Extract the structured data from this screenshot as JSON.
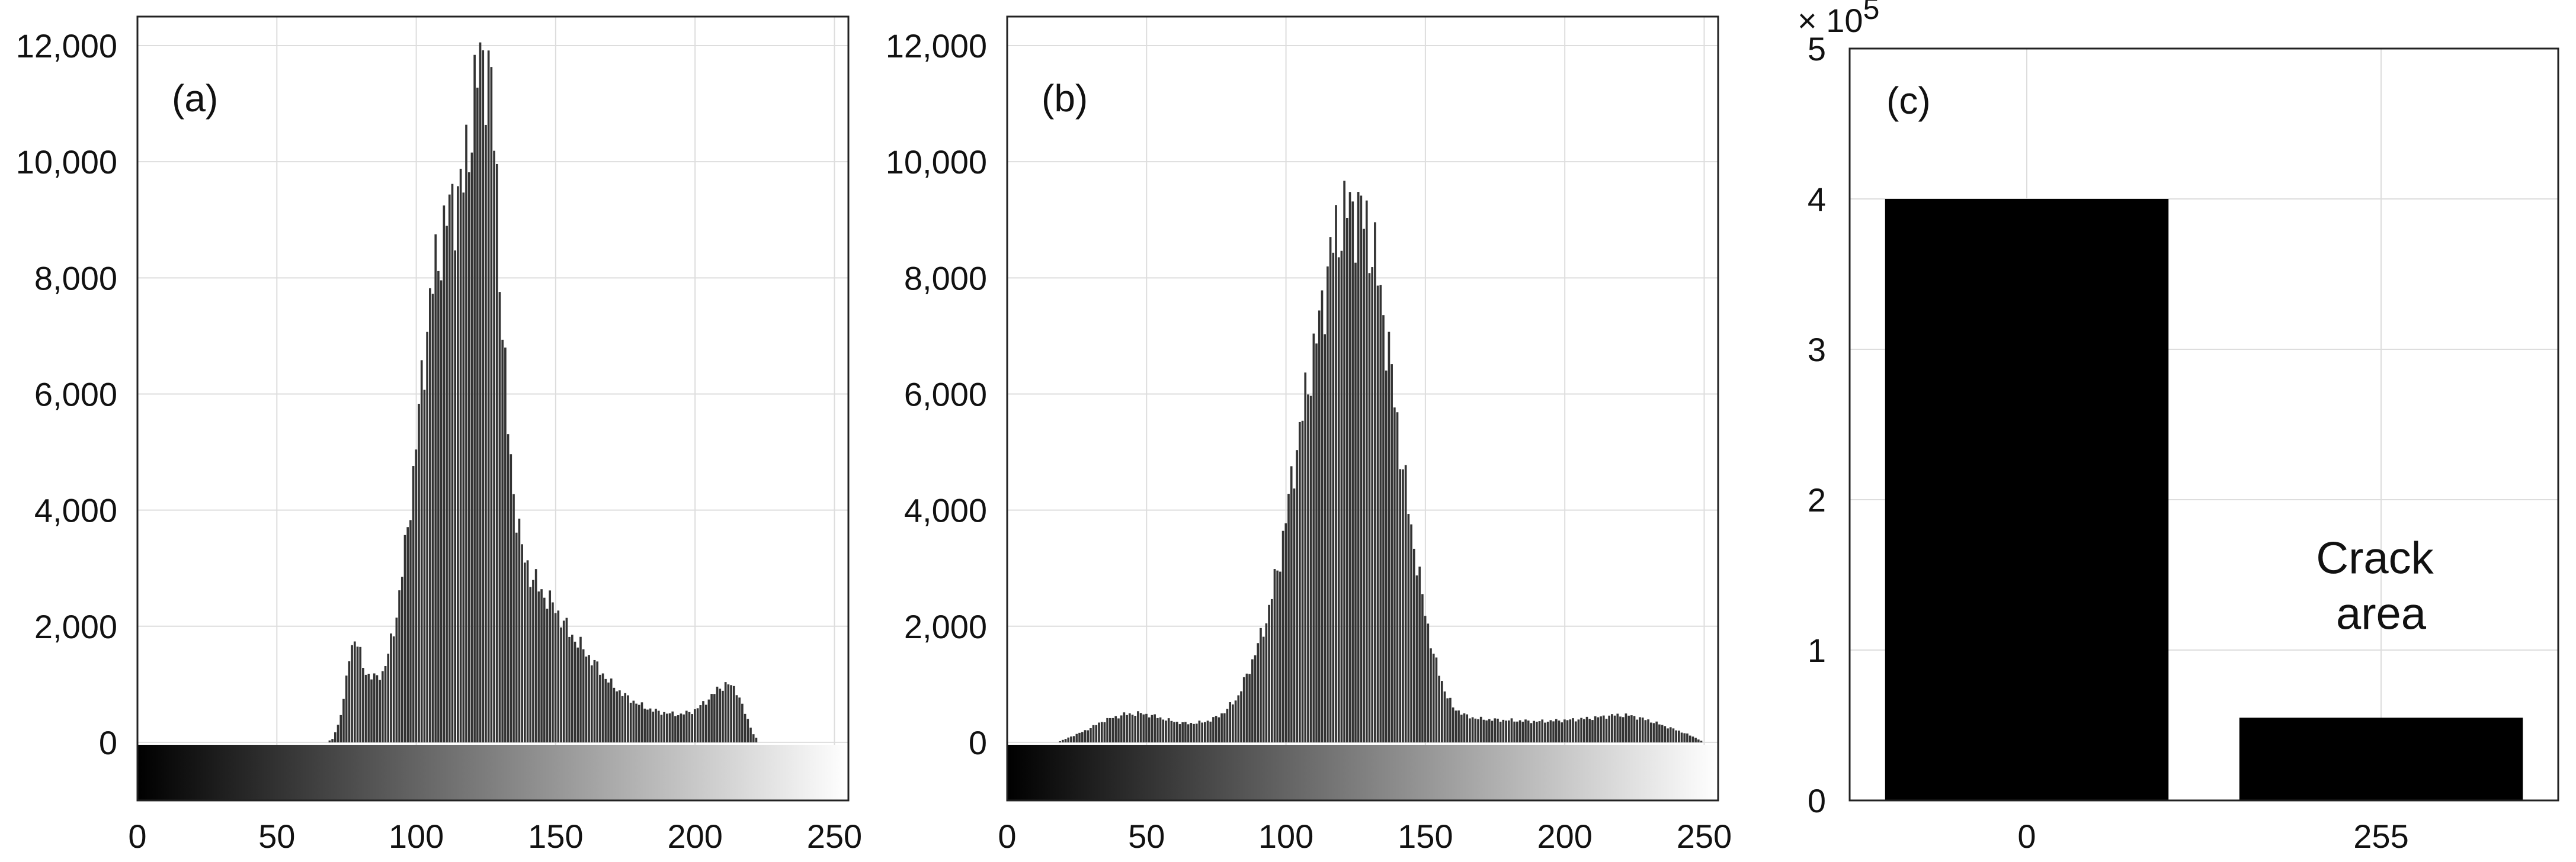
{
  "chart_data": [
    {
      "type": "bar",
      "panel_label": "(a)",
      "title": "",
      "xlabel": "",
      "ylabel": "",
      "xlim": [
        0,
        255
      ],
      "ylim": [
        -1000,
        12500
      ],
      "xticks": [
        0,
        50,
        100,
        150,
        200,
        250
      ],
      "xtick_labels": [
        "0",
        "50",
        "100",
        "150",
        "200",
        "250"
      ],
      "yticks": [
        0,
        2000,
        4000,
        6000,
        8000,
        10000,
        12000
      ],
      "ytick_labels": [
        "0",
        "2,000",
        "4,000",
        "6,000",
        "8,000",
        "10,000",
        "12,000"
      ],
      "grid": true,
      "colorbar": "gray gradient from 0 (black) to 255 (white)",
      "bar_color": "#333333",
      "profile": [
        [
          0,
          0
        ],
        [
          68,
          0
        ],
        [
          70,
          60
        ],
        [
          72,
          300
        ],
        [
          74,
          700
        ],
        [
          76,
          1500
        ],
        [
          78,
          1800
        ],
        [
          80,
          1500
        ],
        [
          82,
          1200
        ],
        [
          85,
          1100
        ],
        [
          88,
          1200
        ],
        [
          90,
          1500
        ],
        [
          93,
          2200
        ],
        [
          96,
          3300
        ],
        [
          99,
          4600
        ],
        [
          102,
          6200
        ],
        [
          105,
          7600
        ],
        [
          108,
          8400
        ],
        [
          111,
          9000
        ],
        [
          114,
          9400
        ],
        [
          117,
          9600
        ],
        [
          120,
          10800
        ],
        [
          123,
          11700
        ],
        [
          125,
          11800
        ],
        [
          127,
          11200
        ],
        [
          129,
          9500
        ],
        [
          131,
          7200
        ],
        [
          133,
          5400
        ],
        [
          135,
          4300
        ],
        [
          138,
          3300
        ],
        [
          141,
          2900
        ],
        [
          145,
          2600
        ],
        [
          150,
          2300
        ],
        [
          155,
          1900
        ],
        [
          160,
          1600
        ],
        [
          165,
          1300
        ],
        [
          170,
          1000
        ],
        [
          175,
          800
        ],
        [
          180,
          650
        ],
        [
          185,
          550
        ],
        [
          190,
          500
        ],
        [
          195,
          480
        ],
        [
          200,
          550
        ],
        [
          205,
          750
        ],
        [
          209,
          950
        ],
        [
          212,
          1000
        ],
        [
          215,
          900
        ],
        [
          218,
          500
        ],
        [
          221,
          150
        ],
        [
          223,
          0
        ],
        [
          255,
          0
        ]
      ]
    },
    {
      "type": "bar",
      "panel_label": "(b)",
      "title": "",
      "xlabel": "",
      "ylabel": "",
      "xlim": [
        0,
        255
      ],
      "ylim": [
        -1000,
        12500
      ],
      "xticks": [
        0,
        50,
        100,
        150,
        200,
        250
      ],
      "xtick_labels": [
        "0",
        "50",
        "100",
        "150",
        "200",
        "250"
      ],
      "yticks": [
        0,
        2000,
        4000,
        6000,
        8000,
        10000,
        12000
      ],
      "ytick_labels": [
        "0",
        "2,000",
        "4,000",
        "6,000",
        "8,000",
        "10,000",
        "12,000"
      ],
      "grid": true,
      "colorbar": "gray gradient from 0 (black) to 255 (white)",
      "bar_color": "#333333",
      "profile": [
        [
          0,
          0
        ],
        [
          18,
          0
        ],
        [
          22,
          80
        ],
        [
          28,
          200
        ],
        [
          35,
          380
        ],
        [
          42,
          480
        ],
        [
          48,
          500
        ],
        [
          53,
          450
        ],
        [
          58,
          380
        ],
        [
          63,
          330
        ],
        [
          68,
          330
        ],
        [
          73,
          380
        ],
        [
          78,
          520
        ],
        [
          83,
          800
        ],
        [
          88,
          1400
        ],
        [
          93,
          2100
        ],
        [
          98,
          3200
        ],
        [
          103,
          4800
        ],
        [
          108,
          6200
        ],
        [
          112,
          7200
        ],
        [
          116,
          8400
        ],
        [
          120,
          9000
        ],
        [
          123,
          9200
        ],
        [
          126,
          9150
        ],
        [
          129,
          8900
        ],
        [
          132,
          8300
        ],
        [
          135,
          7400
        ],
        [
          138,
          6300
        ],
        [
          141,
          5100
        ],
        [
          145,
          3700
        ],
        [
          149,
          2500
        ],
        [
          153,
          1500
        ],
        [
          157,
          900
        ],
        [
          160,
          600
        ],
        [
          165,
          450
        ],
        [
          170,
          400
        ],
        [
          180,
          380
        ],
        [
          190,
          360
        ],
        [
          200,
          380
        ],
        [
          210,
          420
        ],
        [
          218,
          470
        ],
        [
          224,
          460
        ],
        [
          230,
          380
        ],
        [
          236,
          280
        ],
        [
          242,
          180
        ],
        [
          247,
          80
        ],
        [
          250,
          0
        ],
        [
          255,
          0
        ]
      ]
    },
    {
      "type": "bar",
      "panel_label": "(c)",
      "title": "",
      "xlabel": "",
      "ylabel": "",
      "categories": [
        "0",
        "255"
      ],
      "values": [
        4.0,
        0.55
      ],
      "multiplier_label": "× 10",
      "multiplier_exponent": "5",
      "ylim": [
        0,
        5
      ],
      "yticks": [
        0,
        1,
        2,
        3,
        4,
        5
      ],
      "ytick_labels": [
        "0",
        "1",
        "2",
        "3",
        "4",
        "5"
      ],
      "grid": true,
      "bar_color": "#000000",
      "annotation_lines": [
        "Crack",
        "area"
      ]
    }
  ]
}
